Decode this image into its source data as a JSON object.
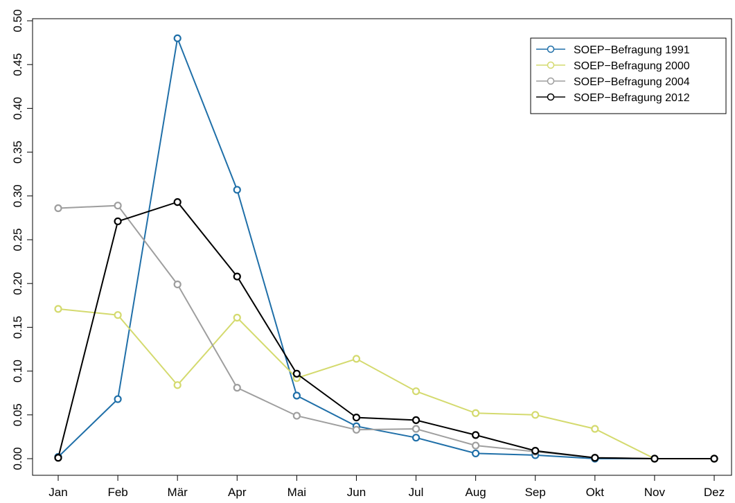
{
  "chart_data": {
    "type": "line",
    "categories": [
      "Jan",
      "Feb",
      "Mär",
      "Apr",
      "Mai",
      "Jun",
      "Jul",
      "Aug",
      "Sep",
      "Okt",
      "Nov",
      "Dez"
    ],
    "ylim": [
      0,
      0.5
    ],
    "yticks": [
      "0.00",
      "0.05",
      "0.10",
      "0.15",
      "0.20",
      "0.25",
      "0.30",
      "0.35",
      "0.40",
      "0.45",
      "0.50"
    ],
    "grid": false,
    "legend_position": "top-right",
    "series": [
      {
        "name": "SOEP−Befragung 1991",
        "color": "#1f6fa8",
        "values": [
          0.002,
          0.068,
          0.48,
          0.307,
          0.072,
          0.037,
          0.024,
          0.006,
          0.004,
          0.0,
          0.0,
          0.0
        ]
      },
      {
        "name": "SOEP−Befragung 2000",
        "color": "#d4da6e",
        "values": [
          0.171,
          0.164,
          0.084,
          0.161,
          0.092,
          0.114,
          0.077,
          0.052,
          0.05,
          0.034,
          0.0,
          0.0
        ]
      },
      {
        "name": "SOEP−Befragung 2004",
        "color": "#9e9e9e",
        "values": [
          0.286,
          0.289,
          0.199,
          0.081,
          0.049,
          0.033,
          0.034,
          0.015,
          0.008,
          0.001,
          0.0,
          0.0
        ]
      },
      {
        "name": "SOEP−Befragung 2012",
        "color": "#000000",
        "values": [
          0.001,
          0.271,
          0.293,
          0.208,
          0.097,
          0.047,
          0.044,
          0.027,
          0.009,
          0.001,
          0.0,
          0.0
        ]
      }
    ]
  }
}
